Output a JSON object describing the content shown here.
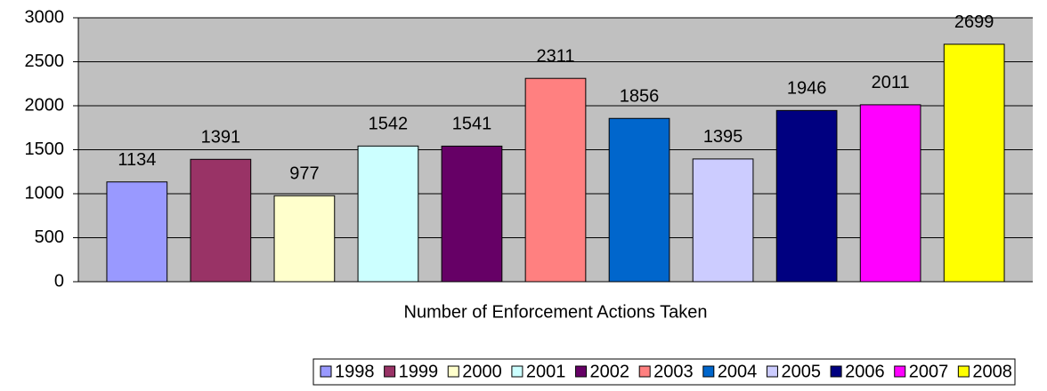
{
  "chart_data": {
    "type": "bar",
    "categories": [
      "Number of Enforcement Actions Taken"
    ],
    "series": [
      {
        "name": "1998",
        "color": "#9999ff",
        "values": [
          1134
        ]
      },
      {
        "name": "1999",
        "color": "#993366",
        "values": [
          1391
        ]
      },
      {
        "name": "2000",
        "color": "#ffffcc",
        "values": [
          977
        ]
      },
      {
        "name": "2001",
        "color": "#ccffff",
        "values": [
          1542
        ]
      },
      {
        "name": "2002",
        "color": "#660066",
        "values": [
          1541
        ]
      },
      {
        "name": "2003",
        "color": "#ff8080",
        "values": [
          2311
        ]
      },
      {
        "name": "2004",
        "color": "#0066cc",
        "values": [
          1856
        ]
      },
      {
        "name": "2005",
        "color": "#ccccff",
        "values": [
          1395
        ]
      },
      {
        "name": "2006",
        "color": "#000080",
        "values": [
          1946
        ]
      },
      {
        "name": "2007",
        "color": "#ff00ff",
        "values": [
          2011
        ]
      },
      {
        "name": "2008",
        "color": "#ffff00",
        "values": [
          2699
        ]
      }
    ],
    "ylim": [
      0,
      3000
    ],
    "yticks": [
      0,
      500,
      1000,
      1500,
      2000,
      2500,
      3000
    ],
    "grid": true,
    "legend": "bottom"
  }
}
